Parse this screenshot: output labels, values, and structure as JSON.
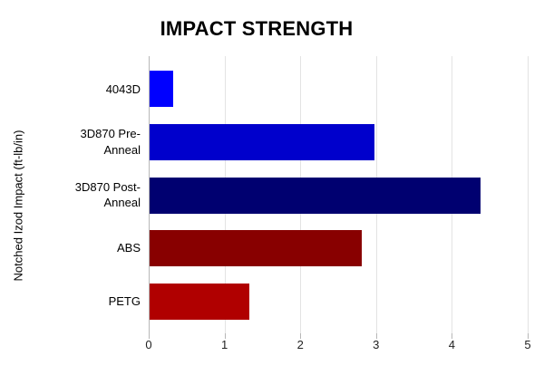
{
  "chart_data": {
    "type": "bar",
    "orientation": "horizontal",
    "title": "IMPACT STRENGTH",
    "ylabel": "Notched Izod Impact (ft-lb/in)",
    "xlabel": "",
    "categories": [
      "4043D",
      "3D870 Pre-Anneal",
      "3D870 Post-Anneal",
      "ABS",
      "PETG"
    ],
    "values": [
      0.31,
      2.97,
      4.37,
      2.8,
      1.31
    ],
    "bar_colors": [
      "#0000ff",
      "#0000cc",
      "#000070",
      "#880000",
      "#b00000"
    ],
    "xlim": [
      0,
      5
    ],
    "x_ticks": [
      0,
      1,
      2,
      3,
      4,
      5
    ],
    "grid": "vertical",
    "legend": "none"
  },
  "colors": {
    "background": "#ffffff",
    "gridline": "#e3e3e3",
    "axis_line": "#b7b7b7",
    "title_text": "#000000",
    "label_text": "#000000",
    "tick_text": "#222222"
  }
}
